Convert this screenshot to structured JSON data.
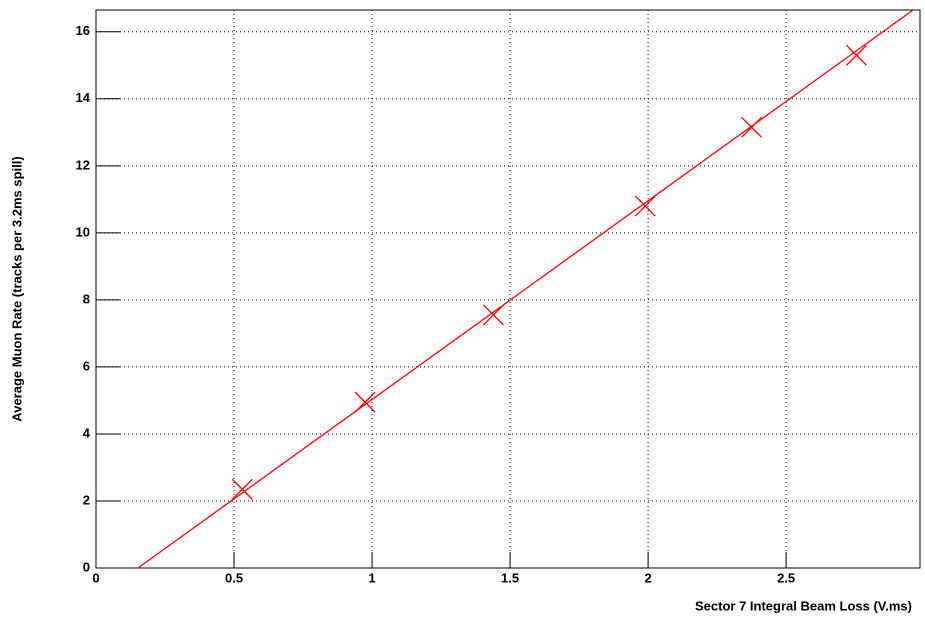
{
  "chart_data": {
    "type": "scatter",
    "xlabel": "Sector 7 Integral Beam Loss (V.ms)",
    "ylabel": "Average Muon Rate (tracks per 3.2ms spill)",
    "x": [
      0.53,
      0.975,
      1.44,
      1.99,
      2.375,
      2.755
    ],
    "series": [
      {
        "color": "#ff0000",
        "values": [
          2.35,
          4.95,
          7.55,
          10.8,
          13.15,
          15.3
        ]
      }
    ],
    "fit": {
      "color": "#ff0000",
      "x": [
        0.152,
        2.96
      ],
      "y": [
        0,
        16.65
      ]
    },
    "xlim": [
      0,
      2.985
    ],
    "ylim": [
      0,
      16.65
    ],
    "xticks": [
      0,
      0.5,
      1,
      1.5,
      2,
      2.5
    ],
    "yticks": [
      0,
      2,
      4,
      6,
      8,
      10,
      12,
      14,
      16
    ],
    "grid": true
  }
}
